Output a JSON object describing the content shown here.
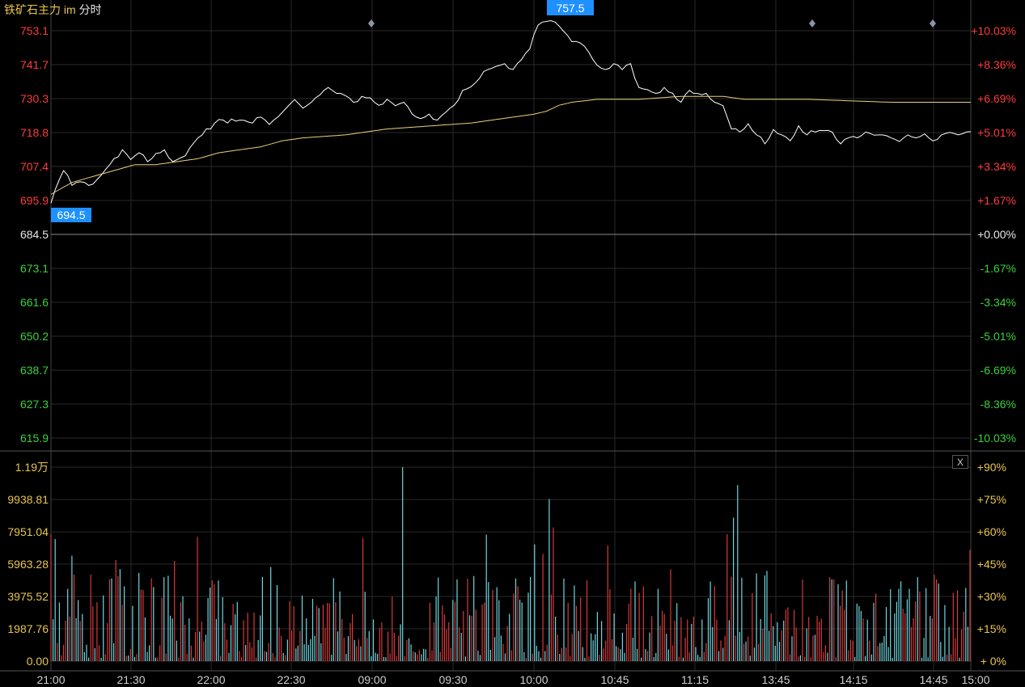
{
  "header": {
    "symbol": "铁矿石主力 im",
    "mode": "分时"
  },
  "colors": {
    "background": "#000000",
    "grid": "#2a2a2a",
    "price_line": "#ffffff",
    "avg_line": "#e8d27a",
    "up": "#ff3b3b",
    "down": "#3bd13b",
    "neutral": "#e6e6e6",
    "volume_label": "#e8c64f",
    "volume_up": "#d63a3a",
    "volume_down": "#6fd6e0",
    "badge": "#1e90ff",
    "diamond": "#8a95a8"
  },
  "close_button": {
    "label": "X"
  },
  "chart_data": {
    "type": "line",
    "prev_close": 684.5,
    "high_label": "757.5",
    "low_label": "694.5",
    "price_axis": {
      "ticks": [
        "753.1",
        "741.7",
        "730.3",
        "718.8",
        "707.4",
        "695.9",
        "684.5",
        "673.1",
        "661.6",
        "650.2",
        "638.7",
        "627.3",
        "615.9"
      ],
      "ylim": [
        615.9,
        753.1
      ]
    },
    "pct_axis": {
      "ticks": [
        "+10.03%",
        "+8.36%",
        "+6.69%",
        "+5.01%",
        "+3.34%",
        "+1.67%",
        "+0.00%",
        "-1.67%",
        "-3.34%",
        "-5.01%",
        "-6.69%",
        "-8.36%",
        "-10.03%"
      ]
    },
    "volume_axis": {
      "ticks": [
        "1.19万",
        "9938.81",
        "7951.04",
        "5963.28",
        "3975.52",
        "1987.76",
        "0.00"
      ],
      "pct_ticks": [
        "+90%",
        "+75%",
        "+60%",
        "+45%",
        "+30%",
        "+15%",
        "+ 0%"
      ],
      "ylim": [
        0,
        11900
      ]
    },
    "x_ticks": [
      "21:00",
      "21:30",
      "22:00",
      "22:30",
      "09:00",
      "09:30",
      "10:00",
      "10:45",
      "11:15",
      "13:45",
      "14:15",
      "14:45",
      "15:00"
    ],
    "price_anchors": [
      [
        0,
        695
      ],
      [
        2,
        703
      ],
      [
        3,
        706
      ],
      [
        5,
        701
      ],
      [
        7,
        703
      ],
      [
        9,
        701
      ],
      [
        11,
        703
      ],
      [
        13,
        706
      ],
      [
        15,
        710
      ],
      [
        17,
        713
      ],
      [
        19,
        710
      ],
      [
        21,
        712
      ],
      [
        23,
        709
      ],
      [
        25,
        711
      ],
      [
        27,
        713
      ],
      [
        29,
        709
      ],
      [
        32,
        711
      ],
      [
        34,
        716
      ],
      [
        36,
        718
      ],
      [
        38,
        720
      ],
      [
        40,
        724
      ],
      [
        42,
        722
      ],
      [
        45,
        723
      ],
      [
        48,
        722
      ],
      [
        50,
        724
      ],
      [
        52,
        722
      ],
      [
        54,
        724
      ],
      [
        56,
        727
      ],
      [
        58,
        730
      ],
      [
        60,
        727
      ],
      [
        62,
        729
      ],
      [
        64,
        732
      ],
      [
        66,
        734
      ],
      [
        68,
        732
      ],
      [
        70,
        732
      ],
      [
        72,
        729
      ],
      [
        74,
        731
      ],
      [
        76,
        730
      ],
      [
        78,
        728
      ],
      [
        80,
        730
      ],
      [
        82,
        728
      ],
      [
        84,
        729
      ],
      [
        86,
        725
      ],
      [
        88,
        723
      ],
      [
        90,
        725
      ],
      [
        92,
        723
      ],
      [
        94,
        726
      ],
      [
        96,
        728
      ],
      [
        98,
        733
      ],
      [
        100,
        734
      ],
      [
        102,
        737
      ],
      [
        104,
        740
      ],
      [
        106,
        741
      ],
      [
        108,
        742
      ],
      [
        110,
        740
      ],
      [
        112,
        744
      ],
      [
        114,
        747
      ],
      [
        116,
        755
      ],
      [
        118,
        757
      ],
      [
        120,
        756
      ],
      [
        122,
        753
      ],
      [
        124,
        750
      ],
      [
        126,
        749
      ],
      [
        128,
        746
      ],
      [
        130,
        741
      ],
      [
        132,
        740
      ],
      [
        134,
        742
      ],
      [
        136,
        741
      ],
      [
        138,
        742
      ],
      [
        140,
        734
      ],
      [
        142,
        733
      ],
      [
        144,
        732
      ],
      [
        146,
        734
      ],
      [
        148,
        731
      ],
      [
        150,
        729
      ],
      [
        152,
        733
      ],
      [
        154,
        731
      ],
      [
        156,
        732
      ],
      [
        158,
        729
      ],
      [
        160,
        728
      ],
      [
        162,
        720
      ],
      [
        164,
        719
      ],
      [
        166,
        721
      ],
      [
        168,
        718
      ],
      [
        170,
        715
      ],
      [
        172,
        719
      ],
      [
        174,
        718
      ],
      [
        176,
        716
      ],
      [
        178,
        720
      ],
      [
        180,
        718
      ],
      [
        182,
        719
      ],
      [
        184,
        720
      ],
      [
        186,
        719
      ],
      [
        188,
        715
      ],
      [
        190,
        718
      ],
      [
        192,
        717
      ],
      [
        194,
        719
      ],
      [
        196,
        718
      ],
      [
        198,
        718
      ],
      [
        200,
        717
      ],
      [
        202,
        716
      ],
      [
        204,
        718
      ],
      [
        206,
        717
      ],
      [
        208,
        718
      ],
      [
        210,
        716
      ],
      [
        212,
        718
      ],
      [
        214,
        719
      ],
      [
        216,
        718
      ],
      [
        218,
        719
      ]
    ],
    "avg_anchors": [
      [
        0,
        698
      ],
      [
        5,
        702
      ],
      [
        10,
        704
      ],
      [
        15,
        706
      ],
      [
        20,
        708
      ],
      [
        25,
        708
      ],
      [
        30,
        709
      ],
      [
        35,
        710
      ],
      [
        40,
        712
      ],
      [
        50,
        714
      ],
      [
        55,
        716
      ],
      [
        60,
        717
      ],
      [
        70,
        718
      ],
      [
        80,
        720
      ],
      [
        90,
        721
      ],
      [
        100,
        722
      ],
      [
        110,
        724
      ],
      [
        115,
        725
      ],
      [
        118,
        726
      ],
      [
        121,
        728
      ],
      [
        124,
        729
      ],
      [
        130,
        730
      ],
      [
        140,
        730
      ],
      [
        150,
        731
      ],
      [
        160,
        731
      ],
      [
        165,
        730
      ],
      [
        180,
        730
      ],
      [
        200,
        729
      ],
      [
        219,
        729
      ]
    ],
    "volume_seed": 20240521
  }
}
